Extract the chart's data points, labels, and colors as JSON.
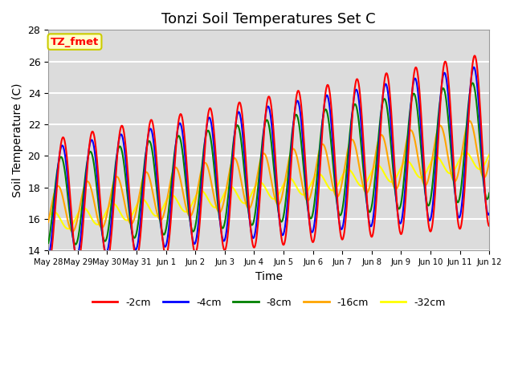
{
  "title": "Tonzi Soil Temperatures Set C",
  "xlabel": "Time",
  "ylabel": "Soil Temperature (C)",
  "ylim": [
    14,
    28
  ],
  "n_days": 15,
  "xtick_labels": [
    "May 28",
    "May 29",
    "May 30",
    "May 31",
    "Jun 1",
    "Jun 2",
    "Jun 3",
    "Jun 4",
    "Jun 5",
    "Jun 6",
    "Jun 7",
    "Jun 8",
    "Jun 9",
    "Jun 10",
    "Jun 11",
    "Jun 12"
  ],
  "ytick_values": [
    14,
    16,
    18,
    20,
    22,
    24,
    26,
    28
  ],
  "series_colors": [
    "red",
    "blue",
    "green",
    "orange",
    "yellow"
  ],
  "series_labels": [
    "-2cm",
    "-4cm",
    "-8cm",
    "-16cm",
    "-32cm"
  ],
  "annotation_text": "TZ_fmet",
  "annotation_color": "red",
  "annotation_bg": "#ffffcc",
  "annotation_border": "#cccc00",
  "plot_bg": "#dcdcdc",
  "grid_color": "white",
  "title_fontsize": 13,
  "axis_fontsize": 9,
  "label_fontsize": 10
}
